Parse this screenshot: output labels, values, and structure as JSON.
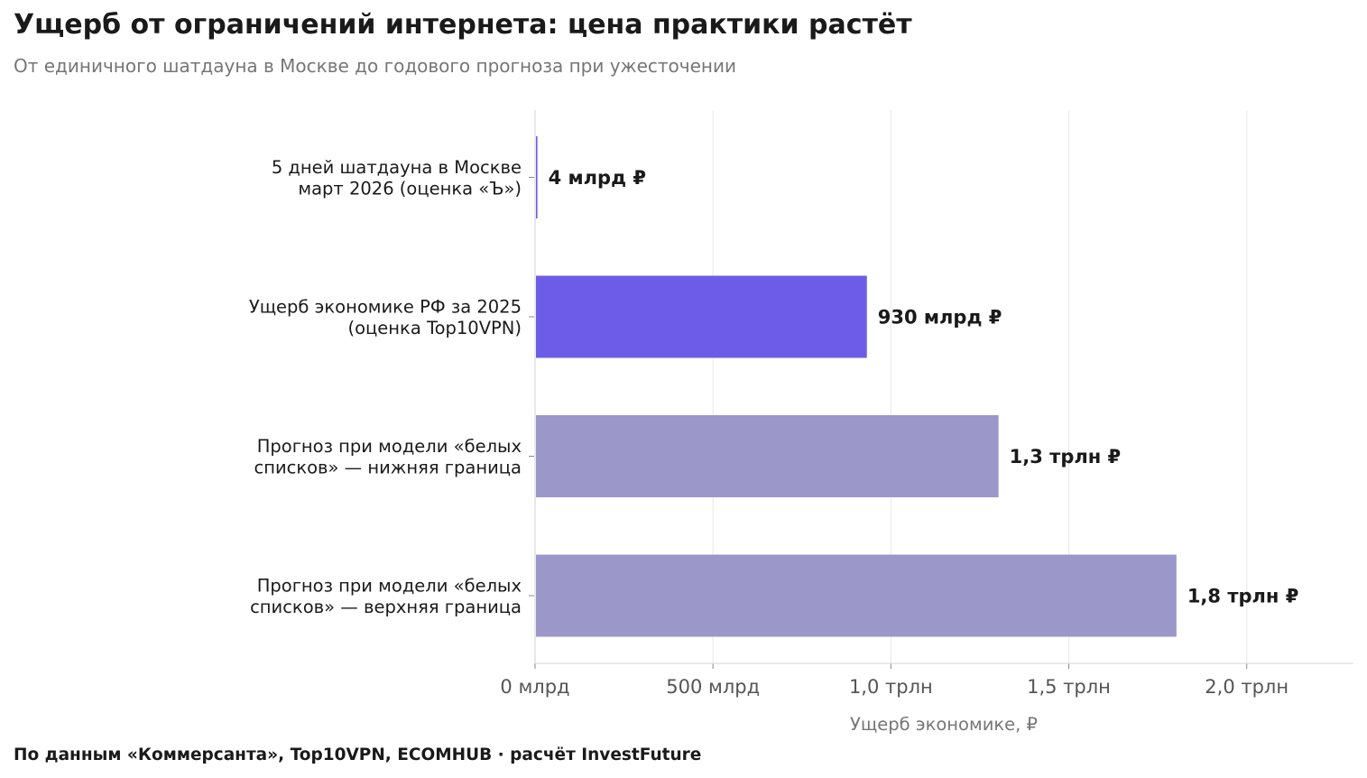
{
  "title": "Ущерб от ограничений интернета: цена практики растёт",
  "subtitle": "От единичного шатдауна в Москве до годового прогноза при ужесточении",
  "source": "По данным «Коммерсанта», Top10VPN, ECOMHUB · расчёт InvestFuture",
  "chart_data": {
    "type": "bar",
    "orientation": "horizontal",
    "categories": [
      [
        "5 дней шатдауна в Москве",
        "март 2026 (оценка «Ъ»)"
      ],
      [
        "Ущерб экономике РФ за 2025",
        "(оценка Top10VPN)"
      ],
      [
        "Прогноз при модели «белых",
        "списков» — нижняя граница"
      ],
      [
        "Прогноз при модели «белых",
        "списков» — верхняя граница"
      ]
    ],
    "values": [
      4,
      930,
      1300,
      1800
    ],
    "value_unit": "млрд ₽",
    "value_labels": [
      "4 млрд ₽",
      "930 млрд ₽",
      "1,3 трлн ₽",
      "1,8 трлн ₽"
    ],
    "bar_colors": [
      "#6c5ce7",
      "#6c5ce7",
      "#9b97c9",
      "#9b97c9"
    ],
    "xlim": [
      0,
      2300
    ],
    "x_ticks": [
      0,
      500,
      1000,
      1500,
      2000
    ],
    "x_tick_labels": [
      "0 млрд",
      "500 млрд",
      "1,0 трлн",
      "1,5 трлн",
      "2,0 трлн"
    ],
    "xlabel": "Ущерб экономике, ₽",
    "grid": "vertical",
    "legend": "none"
  }
}
